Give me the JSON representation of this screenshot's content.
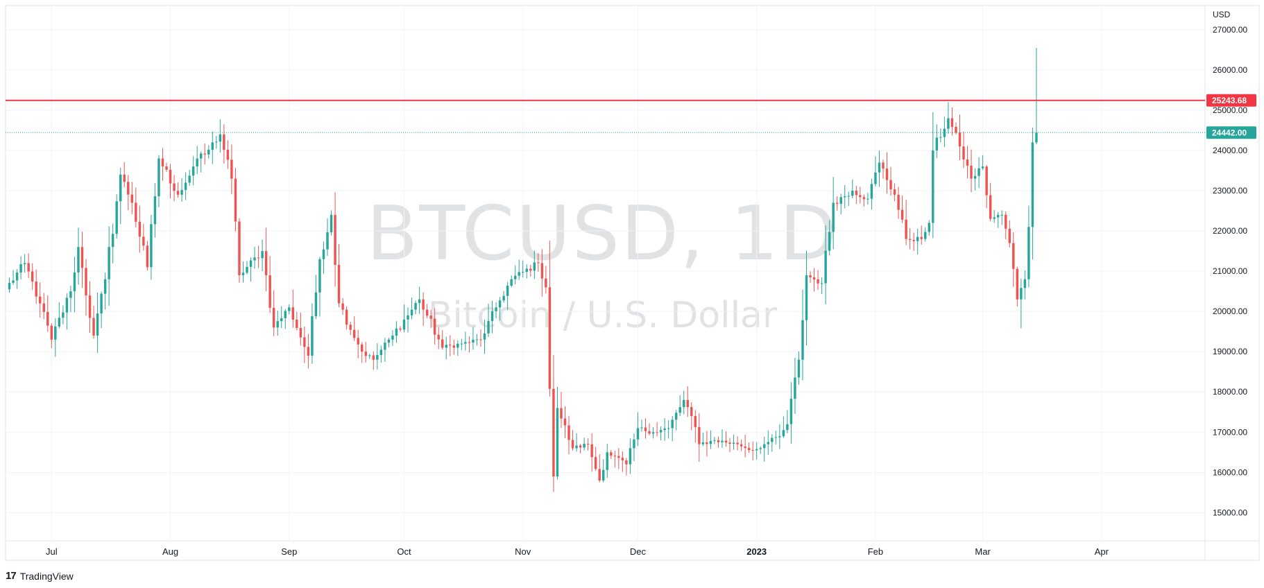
{
  "chart_data": {
    "type": "candlestick",
    "title": "BTCUSD, 1D",
    "subtitle": "Bitcoin / U.S. Dollar",
    "currency_label": "USD",
    "ylim": [
      14300,
      27600
    ],
    "y_ticks": [
      15000,
      16000,
      17000,
      18000,
      19000,
      20000,
      21000,
      22000,
      23000,
      24000,
      25000,
      26000,
      27000
    ],
    "x_ticks": [
      {
        "label": "Jul",
        "date": "2022-07-01"
      },
      {
        "label": "Aug",
        "date": "2022-08-01"
      },
      {
        "label": "Sep",
        "date": "2022-09-01"
      },
      {
        "label": "Oct",
        "date": "2022-10-01"
      },
      {
        "label": "Nov",
        "date": "2022-11-01"
      },
      {
        "label": "Dec",
        "date": "2022-12-01"
      },
      {
        "label": "2023",
        "date": "2023-01-01",
        "bold": true
      },
      {
        "label": "Feb",
        "date": "2023-02-01"
      },
      {
        "label": "Mar",
        "date": "2023-03-01"
      },
      {
        "label": "Apr",
        "date": "2023-04-01"
      }
    ],
    "x_range": [
      "2022-06-19",
      "2023-04-28"
    ],
    "up_color": "#26a69a",
    "down_color": "#ef5350",
    "resistance_line": {
      "value": 25243.68,
      "label": "25243.68",
      "color": "#f23645"
    },
    "last_price": {
      "value": 24442.0,
      "label": "24442.00",
      "color": "#26a69a"
    },
    "grid": true,
    "anchors": [
      [
        "2022-06-19",
        20550
      ],
      [
        "2022-06-24",
        21200
      ],
      [
        "2022-06-28",
        20200
      ],
      [
        "2022-07-01",
        19300
      ],
      [
        "2022-07-06",
        20500
      ],
      [
        "2022-07-08",
        21600
      ],
      [
        "2022-07-12",
        19400
      ],
      [
        "2022-07-15",
        20800
      ],
      [
        "2022-07-19",
        23400
      ],
      [
        "2022-07-22",
        22700
      ],
      [
        "2022-07-26",
        21100
      ],
      [
        "2022-07-29",
        23800
      ],
      [
        "2022-08-03",
        22900
      ],
      [
        "2022-08-05",
        23200
      ],
      [
        "2022-08-08",
        23800
      ],
      [
        "2022-08-10",
        23900
      ],
      [
        "2022-08-14",
        24400
      ],
      [
        "2022-08-17",
        23300
      ],
      [
        "2022-08-19",
        20900
      ],
      [
        "2022-08-25",
        21500
      ],
      [
        "2022-08-28",
        19600
      ],
      [
        "2022-09-01",
        20100
      ],
      [
        "2022-09-06",
        18900
      ],
      [
        "2022-09-09",
        21300
      ],
      [
        "2022-09-12",
        22400
      ],
      [
        "2022-09-14",
        20200
      ],
      [
        "2022-09-20",
        19000
      ],
      [
        "2022-09-23",
        18800
      ],
      [
        "2022-09-28",
        19400
      ],
      [
        "2022-10-05",
        20300
      ],
      [
        "2022-10-11",
        19100
      ],
      [
        "2022-10-16",
        19200
      ],
      [
        "2022-10-21",
        19300
      ],
      [
        "2022-10-25",
        20100
      ],
      [
        "2022-10-29",
        20800
      ],
      [
        "2022-11-05",
        21200
      ],
      [
        "2022-11-07",
        20600
      ],
      [
        "2022-11-09",
        15900
      ],
      [
        "2022-11-10",
        17600
      ],
      [
        "2022-11-14",
        16600
      ],
      [
        "2022-11-18",
        16700
      ],
      [
        "2022-11-21",
        15800
      ],
      [
        "2022-11-23",
        16500
      ],
      [
        "2022-11-28",
        16200
      ],
      [
        "2022-12-01",
        17100
      ],
      [
        "2022-12-05",
        17000
      ],
      [
        "2022-12-09",
        17100
      ],
      [
        "2022-12-13",
        17800
      ],
      [
        "2022-12-15",
        17400
      ],
      [
        "2022-12-17",
        16700
      ],
      [
        "2022-12-21",
        16800
      ],
      [
        "2022-12-27",
        16700
      ],
      [
        "2022-12-31",
        16550
      ],
      [
        "2023-01-03",
        16700
      ],
      [
        "2023-01-07",
        16900
      ],
      [
        "2023-01-09",
        17200
      ],
      [
        "2023-01-12",
        18800
      ],
      [
        "2023-01-14",
        20900
      ],
      [
        "2023-01-18",
        20700
      ],
      [
        "2023-01-21",
        22700
      ],
      [
        "2023-01-26",
        23000
      ],
      [
        "2023-01-30",
        22800
      ],
      [
        "2023-02-02",
        23700
      ],
      [
        "2023-02-06",
        22900
      ],
      [
        "2023-02-09",
        21800
      ],
      [
        "2023-02-13",
        21800
      ],
      [
        "2023-02-15",
        22200
      ],
      [
        "2023-02-16",
        24000
      ],
      [
        "2023-02-20",
        24800
      ],
      [
        "2023-02-23",
        24100
      ],
      [
        "2023-02-26",
        23300
      ],
      [
        "2023-03-01",
        23600
      ],
      [
        "2023-03-03",
        22300
      ],
      [
        "2023-03-06",
        22400
      ],
      [
        "2023-03-08",
        21700
      ],
      [
        "2023-03-10",
        20300
      ],
      [
        "2023-03-12",
        20800
      ],
      [
        "2023-03-13",
        22100
      ],
      [
        "2023-03-14",
        24200
      ],
      [
        "2023-03-15",
        24442
      ]
    ]
  },
  "footer": {
    "brand": "TradingView"
  }
}
